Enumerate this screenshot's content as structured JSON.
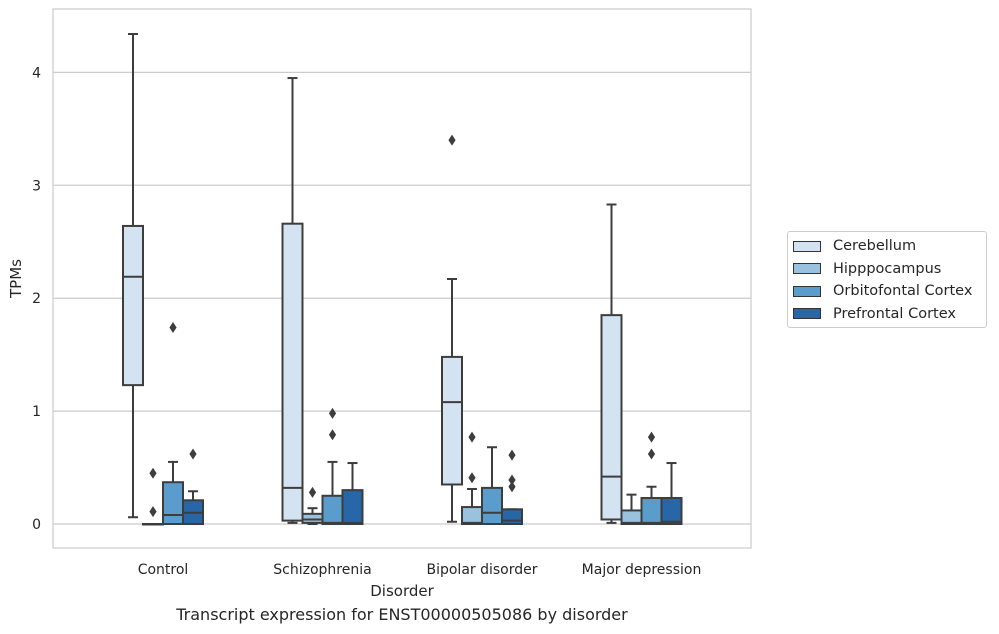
{
  "chart_data": {
    "type": "box",
    "title": "",
    "caption": "Transcript expression for ENST00000505086 by disorder",
    "xlabel": "Disorder",
    "ylabel": "TPMs",
    "ylim": [
      -0.2,
      4.55
    ],
    "yticks": [
      0,
      1,
      2,
      3,
      4
    ],
    "grid": "horizontal",
    "legend_position": "right",
    "categories": [
      "Control",
      "Schizophrenia",
      "Bipolar disorder",
      "Major depression"
    ],
    "series": [
      {
        "name": "Cerebellum",
        "color": "#d3e3f2",
        "boxes": [
          {
            "whisker_low": 0.06,
            "q1": 1.23,
            "median": 2.19,
            "q3": 2.64,
            "whisker_high": 4.34,
            "outliers": []
          },
          {
            "whisker_low": 0.01,
            "q1": 0.03,
            "median": 0.32,
            "q3": 2.66,
            "whisker_high": 3.95,
            "outliers": []
          },
          {
            "whisker_low": 0.02,
            "q1": 0.35,
            "median": 1.08,
            "q3": 1.48,
            "whisker_high": 2.17,
            "outliers": [
              3.4
            ]
          },
          {
            "whisker_low": 0.01,
            "q1": 0.04,
            "median": 0.42,
            "q3": 1.85,
            "whisker_high": 2.83,
            "outliers": []
          }
        ]
      },
      {
        "name": "Hipppocampus",
        "color": "#9ac2de",
        "boxes": [
          {
            "whisker_low": 0.0,
            "q1": 0.0,
            "median": 0.0,
            "q3": 0.0,
            "whisker_high": 0.0,
            "outliers": [
              0.11,
              0.45
            ]
          },
          {
            "whisker_low": 0.0,
            "q1": 0.01,
            "median": 0.04,
            "q3": 0.09,
            "whisker_high": 0.14,
            "outliers": [
              0.28
            ]
          },
          {
            "whisker_low": 0.0,
            "q1": 0.0,
            "median": 0.01,
            "q3": 0.15,
            "whisker_high": 0.31,
            "outliers": [
              0.41,
              0.77
            ]
          },
          {
            "whisker_low": 0.0,
            "q1": 0.0,
            "median": 0.01,
            "q3": 0.12,
            "whisker_high": 0.26,
            "outliers": []
          }
        ]
      },
      {
        "name": "Orbitofontal Cortex",
        "color": "#5a9ccb",
        "boxes": [
          {
            "whisker_low": 0.0,
            "q1": 0.0,
            "median": 0.08,
            "q3": 0.37,
            "whisker_high": 0.55,
            "outliers": [
              1.74
            ]
          },
          {
            "whisker_low": 0.0,
            "q1": 0.0,
            "median": 0.01,
            "q3": 0.25,
            "whisker_high": 0.55,
            "outliers": [
              0.79,
              0.98
            ]
          },
          {
            "whisker_low": 0.0,
            "q1": 0.0,
            "median": 0.1,
            "q3": 0.32,
            "whisker_high": 0.68,
            "outliers": []
          },
          {
            "whisker_low": 0.0,
            "q1": 0.0,
            "median": 0.01,
            "q3": 0.23,
            "whisker_high": 0.33,
            "outliers": [
              0.62,
              0.77
            ]
          }
        ]
      },
      {
        "name": "Prefrontal Cortex",
        "color": "#2767a7",
        "boxes": [
          {
            "whisker_low": 0.0,
            "q1": 0.0,
            "median": 0.1,
            "q3": 0.21,
            "whisker_high": 0.29,
            "outliers": [
              0.62
            ]
          },
          {
            "whisker_low": 0.0,
            "q1": 0.0,
            "median": 0.01,
            "q3": 0.3,
            "whisker_high": 0.54,
            "outliers": []
          },
          {
            "whisker_low": 0.0,
            "q1": 0.0,
            "median": 0.03,
            "q3": 0.13,
            "whisker_high": 0.13,
            "outliers": [
              0.33,
              0.39,
              0.61
            ]
          },
          {
            "whisker_low": 0.0,
            "q1": 0.0,
            "median": 0.02,
            "q3": 0.23,
            "whisker_high": 0.54,
            "outliers": []
          }
        ]
      }
    ]
  }
}
